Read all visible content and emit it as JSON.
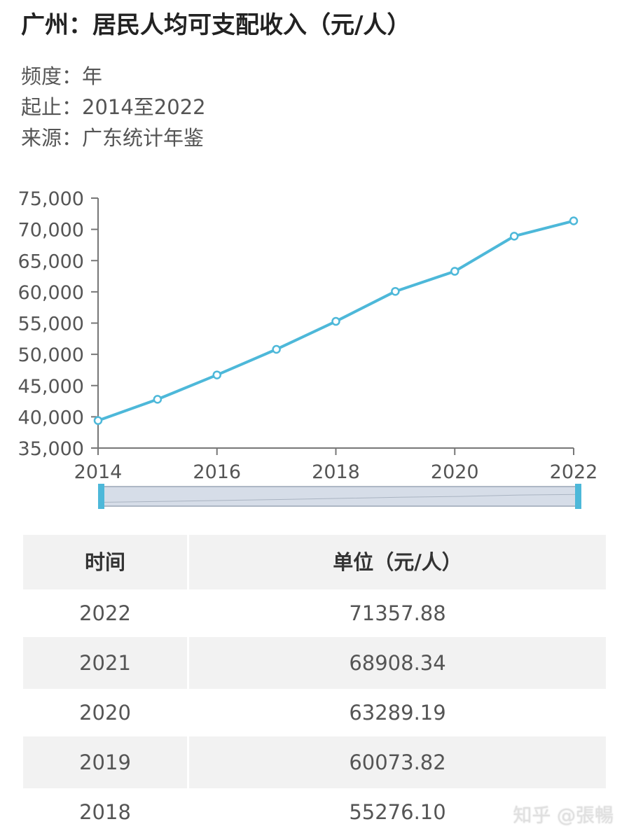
{
  "header": {
    "title": "广州：居民人均可支配收入（元/人）",
    "frequency": "频度：年",
    "range": "起止：2014至2022",
    "source": "来源：广东统计年鉴"
  },
  "chart_data": {
    "type": "line",
    "x": [
      2014,
      2015,
      2016,
      2017,
      2018,
      2019,
      2020,
      2021,
      2022
    ],
    "series": [
      {
        "values": [
          39400,
          42800,
          46700,
          50800,
          55276.1,
          60073.82,
          63289.19,
          68908.34,
          71357.88
        ]
      }
    ],
    "ylim": [
      35000,
      75000
    ],
    "y_ticks": [
      "35,000",
      "40,000",
      "45,000",
      "50,000",
      "55,000",
      "60,000",
      "65,000",
      "70,000",
      "75,000"
    ],
    "x_ticks": [
      "2014",
      "2016",
      "2018",
      "2020",
      "2022"
    ],
    "line_color": "#4db8d9",
    "grid": false
  },
  "table": {
    "headers": [
      "时间",
      "单位（元/人）"
    ],
    "rows": [
      [
        "2022",
        "71357.88"
      ],
      [
        "2021",
        "68908.34"
      ],
      [
        "2020",
        "63289.19"
      ],
      [
        "2019",
        "60073.82"
      ],
      [
        "2018",
        "55276.10"
      ]
    ]
  },
  "watermark": "知乎 @張暢"
}
